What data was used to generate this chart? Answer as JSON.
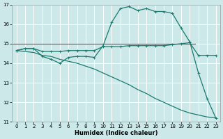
{
  "xlabel": "Humidex (Indice chaleur)",
  "bg_color": "#cce8e8",
  "grid_color": "#ffffff",
  "line_color": "#1a7a6e",
  "red_line_color": "#cc3333",
  "xlim": [
    -0.5,
    23.5
  ],
  "ylim": [
    11,
    17
  ],
  "xticks": [
    0,
    1,
    2,
    3,
    4,
    5,
    6,
    7,
    8,
    9,
    10,
    11,
    12,
    13,
    14,
    15,
    16,
    17,
    18,
    19,
    20,
    21,
    22,
    23
  ],
  "yticks": [
    11,
    12,
    13,
    14,
    15,
    16,
    17
  ],
  "line1_x": [
    0,
    1,
    2,
    3,
    4,
    5,
    6,
    7,
    8,
    9,
    10,
    11,
    12,
    13,
    14,
    15,
    16,
    17,
    18,
    19,
    20,
    21,
    22,
    23
  ],
  "line1_y": [
    14.65,
    14.75,
    14.75,
    14.35,
    14.2,
    14.0,
    14.3,
    14.35,
    14.35,
    14.3,
    14.9,
    16.1,
    16.8,
    16.9,
    16.7,
    16.8,
    16.65,
    16.65,
    16.55,
    15.8,
    15.1,
    13.5,
    12.2,
    11.2
  ],
  "line2_x": [
    0,
    1,
    2,
    3,
    4,
    5,
    6,
    7,
    8,
    9,
    10,
    11,
    12,
    13,
    14,
    15,
    16,
    17,
    18,
    19,
    20,
    21,
    22,
    23
  ],
  "line2_y": [
    14.65,
    14.75,
    14.75,
    14.6,
    14.6,
    14.6,
    14.65,
    14.65,
    14.65,
    14.65,
    14.85,
    14.85,
    14.85,
    14.9,
    14.9,
    14.9,
    14.9,
    14.9,
    14.95,
    15.0,
    15.05,
    14.4,
    14.4,
    14.4
  ],
  "line3_x": [
    0,
    1,
    2,
    3,
    4,
    5,
    6,
    7,
    8,
    9,
    10,
    11,
    12,
    13,
    14,
    15,
    16,
    17,
    18,
    19,
    20,
    21,
    22,
    23
  ],
  "line3_y": [
    14.65,
    14.6,
    14.55,
    14.4,
    14.35,
    14.2,
    14.1,
    14.0,
    13.85,
    13.7,
    13.5,
    13.3,
    13.1,
    12.9,
    12.65,
    12.45,
    12.2,
    12.0,
    11.8,
    11.6,
    11.45,
    11.35,
    11.25,
    11.2
  ],
  "hline_y": 15.0,
  "hline_color": "#cc3333",
  "hline_xmin": 0.0,
  "hline_xmax": 0.88
}
